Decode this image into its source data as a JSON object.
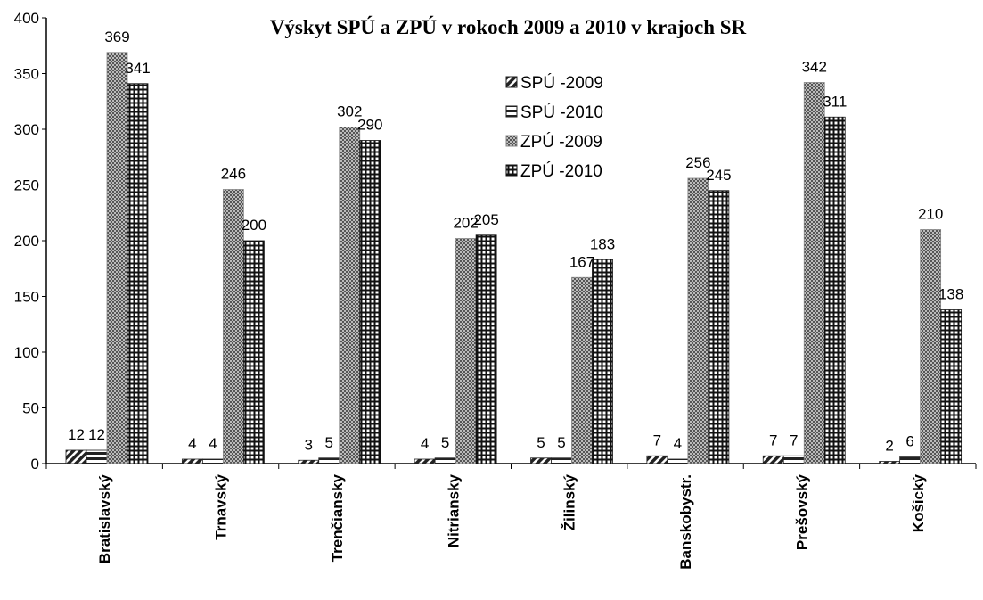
{
  "chart_data": {
    "type": "bar",
    "title": "Výskyt SPÚ a ZPÚ v rokoch 2009 a 2010 v krajoch SR",
    "categories": [
      "Bratislavský",
      "Trnavský",
      "Trenčiansky",
      "Nitriansky",
      "Žilinský",
      "Banskobystr.",
      "Prešovský",
      "Košický"
    ],
    "series": [
      {
        "name": "SPÚ -2009",
        "color": "#222222",
        "pattern": "diagonal",
        "values": [
          12,
          4,
          3,
          4,
          5,
          7,
          7,
          2
        ]
      },
      {
        "name": "SPÚ -2010",
        "color": "#222222",
        "pattern": "half",
        "values": [
          12,
          4,
          5,
          5,
          5,
          4,
          7,
          6
        ]
      },
      {
        "name": "ZPÚ -2009",
        "color": "#888888",
        "pattern": "checker",
        "values": [
          369,
          246,
          302,
          202,
          167,
          256,
          342,
          210
        ]
      },
      {
        "name": "ZPÚ -2010",
        "color": "#111111",
        "pattern": "grid",
        "values": [
          341,
          200,
          290,
          205,
          183,
          245,
          311,
          138
        ]
      }
    ],
    "ylim": [
      0,
      400
    ],
    "yticks": [
      0,
      50,
      100,
      150,
      200,
      250,
      300,
      350,
      400
    ],
    "grid": false,
    "legend": "top"
  }
}
